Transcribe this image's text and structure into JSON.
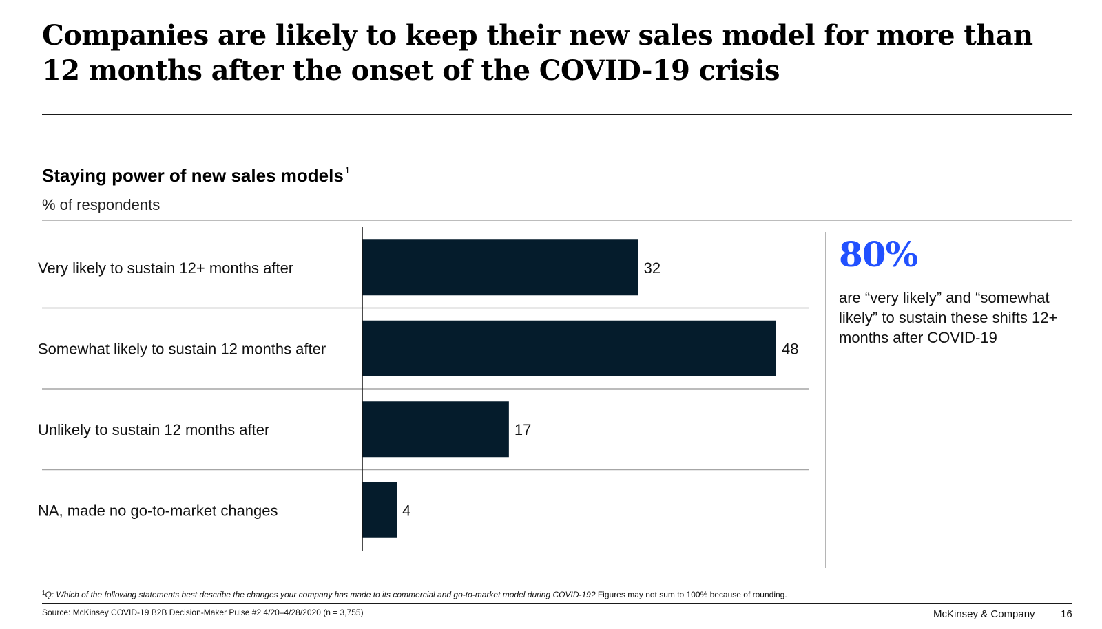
{
  "slide": {
    "title": "Companies are likely to keep their new sales model for more than 12 months after the onset of the COVID-19 crisis"
  },
  "chart_data": {
    "type": "bar",
    "orientation": "horizontal",
    "title": "Staying power of new sales models",
    "title_footnote_mark": "1",
    "subtitle": "% of respondents",
    "categories": [
      "Very likely to sustain 12+ months after",
      "Somewhat likely to sustain 12 months after",
      "Unlikely to sustain 12 months after",
      "NA, made no go-to-market changes"
    ],
    "values": [
      32,
      48,
      17,
      4
    ],
    "xlim": [
      0,
      48
    ],
    "xlabel": "",
    "ylabel": "",
    "grid": false,
    "bar_color": "#051c2c"
  },
  "callout": {
    "value": "80%",
    "text": "are “very likely” and “somewhat likely” to sustain these shifts 12+ months after COVID-19",
    "color": "#2251ff"
  },
  "footnote": {
    "mark": "1",
    "question": "Q: Which of the following statements best describe the changes your company has made to its commercial and go-to-market model during COVID-19?",
    "note": "Figures may not sum to 100% because of rounding."
  },
  "footer": {
    "source": "Source: McKinsey COVID-19 B2B Decision-Maker Pulse #2 4/20–4/28/2020 (n = 3,755)",
    "brand": "McKinsey & Company",
    "page": "16"
  }
}
